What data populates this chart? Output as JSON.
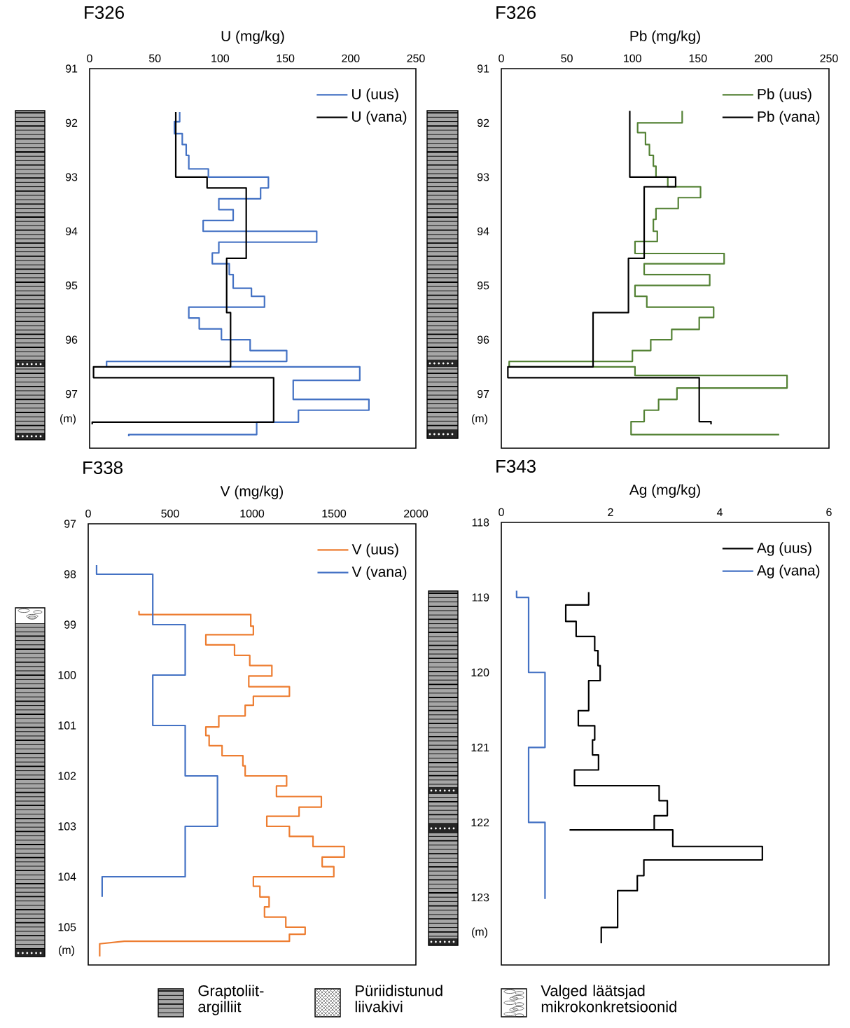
{
  "chart_data": [
    {
      "type": "line",
      "title": "F326",
      "xlabel": "U (mg/kg)",
      "ylabel": "(m)",
      "xlim": [
        0,
        250
      ],
      "xticks": [
        0,
        50,
        100,
        150,
        200,
        250
      ],
      "ylim": [
        98,
        91
      ],
      "yticks": [
        91,
        92,
        93,
        94,
        95,
        96,
        97
      ],
      "legend": "top right",
      "series": [
        {
          "name": "U (uus)",
          "color": "#4472c4",
          "x": [
            69,
            69,
            65,
            65,
            71,
            71,
            74,
            74,
            76,
            76,
            91,
            91,
            137,
            137,
            131,
            131,
            99,
            99,
            110,
            110,
            87,
            87,
            174,
            174,
            99,
            99,
            94,
            94,
            107,
            107,
            110,
            110,
            124,
            124,
            134,
            134,
            76,
            76,
            84,
            84,
            101,
            101,
            123,
            123,
            151,
            151,
            13,
            13,
            207,
            207,
            156,
            156,
            214,
            214,
            160,
            160,
            128,
            128,
            30,
            30
          ],
          "values": [
            91.8,
            91.98,
            91.98,
            92.2,
            92.2,
            92.4,
            92.4,
            92.6,
            92.6,
            92.85,
            92.85,
            93.0,
            93.0,
            93.2,
            93.2,
            93.4,
            93.4,
            93.6,
            93.6,
            93.8,
            93.8,
            94.0,
            94.0,
            94.2,
            94.2,
            94.4,
            94.4,
            94.6,
            94.6,
            94.8,
            94.8,
            95.05,
            95.05,
            95.2,
            95.2,
            95.4,
            95.4,
            95.6,
            95.6,
            95.8,
            95.8,
            96.0,
            96.0,
            96.2,
            96.2,
            96.4,
            96.4,
            96.5,
            96.5,
            96.75,
            96.75,
            97.1,
            97.1,
            97.3,
            97.3,
            97.52,
            97.52,
            97.75,
            97.75,
            97.78
          ]
        },
        {
          "name": "U (vana)",
          "color": "#000000",
          "x": [
            66,
            66,
            90,
            90,
            120,
            120,
            105,
            105,
            108,
            108,
            3,
            3,
            141,
            141,
            2,
            2
          ],
          "values": [
            91.8,
            93.0,
            93.0,
            93.2,
            93.2,
            94.5,
            94.5,
            95.5,
            95.5,
            96.5,
            96.5,
            96.7,
            96.7,
            97.52,
            97.52,
            97.56
          ]
        }
      ]
    },
    {
      "type": "line",
      "title": "F326",
      "xlabel": "Pb (mg/kg)",
      "ylabel": "(m)",
      "xlim": [
        0,
        250
      ],
      "xticks": [
        0,
        50,
        100,
        150,
        200,
        250
      ],
      "ylim": [
        98,
        91
      ],
      "yticks": [
        91,
        92,
        93,
        94,
        95,
        96,
        97
      ],
      "legend": "top right",
      "series": [
        {
          "name": "Pb (uus)",
          "color": "#548235",
          "x": [
            138,
            138,
            104,
            104,
            110,
            110,
            113,
            113,
            116,
            116,
            118,
            118,
            127,
            127,
            152,
            152,
            135,
            135,
            118,
            118,
            116,
            116,
            119,
            119,
            102,
            102,
            170,
            170,
            109,
            109,
            159,
            159,
            102,
            102,
            111,
            111,
            162,
            162,
            151,
            151,
            130,
            130,
            114,
            114,
            100,
            100,
            6,
            6,
            102,
            102,
            218,
            218,
            134,
            134,
            120,
            120,
            109,
            109,
            99,
            99,
            212
          ],
          "values": [
            91.78,
            92.0,
            92.0,
            92.18,
            92.18,
            92.4,
            92.4,
            92.6,
            92.6,
            92.8,
            92.8,
            93.0,
            93.0,
            93.18,
            93.18,
            93.38,
            93.38,
            93.58,
            93.58,
            93.78,
            93.78,
            94.0,
            94.0,
            94.19,
            94.19,
            94.41,
            94.41,
            94.6,
            94.6,
            94.8,
            94.8,
            95.0,
            95.0,
            95.2,
            95.2,
            95.4,
            95.4,
            95.59,
            95.59,
            95.81,
            95.81,
            96.0,
            96.0,
            96.2,
            96.2,
            96.4,
            96.4,
            96.5,
            96.5,
            96.66,
            96.66,
            96.89,
            96.89,
            97.1,
            97.1,
            97.3,
            97.3,
            97.51,
            97.51,
            97.75,
            97.75
          ]
        },
        {
          "name": "Pb (vana)",
          "color": "#000000",
          "x": [
            98,
            98,
            133,
            133,
            109,
            109,
            97,
            97,
            70,
            70,
            5,
            5,
            151,
            151,
            160,
            160
          ],
          "values": [
            91.78,
            93.0,
            93.0,
            93.18,
            93.18,
            94.5,
            94.5,
            95.5,
            95.5,
            96.5,
            96.5,
            96.7,
            96.7,
            97.51,
            97.51,
            97.56
          ]
        }
      ]
    },
    {
      "type": "line",
      "title": "F338",
      "xlabel": "V (mg/kg)",
      "ylabel": "(m)",
      "xlim": [
        0,
        2000
      ],
      "xticks": [
        0,
        500,
        1000,
        1500,
        2000
      ],
      "ylim": [
        105.75,
        97
      ],
      "yticks": [
        97,
        98,
        99,
        100,
        101,
        102,
        103,
        104,
        105
      ],
      "legend": "top right",
      "series": [
        {
          "name": "V (uus)",
          "color": "#ed7d31",
          "x": [
            310,
            310,
            992,
            992,
            1008,
            1008,
            718,
            718,
            893,
            893,
            986,
            986,
            1121,
            1121,
            980,
            980,
            1228,
            1228,
            1008,
            1008,
            958,
            958,
            797,
            797,
            718,
            718,
            738,
            738,
            817,
            817,
            944,
            944,
            958,
            958,
            1211,
            1211,
            1149,
            1149,
            1423,
            1423,
            1287,
            1287,
            1090,
            1090,
            1228,
            1228,
            1372,
            1372,
            1563,
            1563,
            1428,
            1428,
            1499,
            1499,
            1008,
            1008,
            1048,
            1048,
            1104,
            1104,
            1076,
            1076,
            1206,
            1206,
            1324,
            1324,
            1228,
            1228,
            220,
            70,
            70
          ],
          "values": [
            98.73,
            98.8,
            98.8,
            99.03,
            99.03,
            99.2,
            99.2,
            99.4,
            99.4,
            99.61,
            99.61,
            99.81,
            99.81,
            100.02,
            100.02,
            100.23,
            100.23,
            100.42,
            100.42,
            100.6,
            100.6,
            100.81,
            100.81,
            101.03,
            101.03,
            101.2,
            101.2,
            101.4,
            101.4,
            101.6,
            101.6,
            101.8,
            101.8,
            102.0,
            102.0,
            102.2,
            102.2,
            102.41,
            102.41,
            102.62,
            102.62,
            102.8,
            102.8,
            103.0,
            103.0,
            103.2,
            103.2,
            103.4,
            103.4,
            103.61,
            103.61,
            103.8,
            103.8,
            104.0,
            104.0,
            104.19,
            104.19,
            104.4,
            104.4,
            104.6,
            104.6,
            104.8,
            104.8,
            105.0,
            105.0,
            105.14,
            105.14,
            105.28,
            105.28,
            105.33,
            105.58
          ]
        },
        {
          "name": "V (vana)",
          "color": "#4472c4",
          "x": [
            51,
            51,
            394,
            394,
            592,
            592,
            394,
            394,
            592,
            592,
            789,
            789,
            592,
            592,
            85,
            85
          ],
          "values": [
            97.82,
            98.0,
            98.0,
            99.0,
            99.0,
            100.0,
            100.0,
            101.0,
            101.0,
            102.0,
            102.0,
            103.0,
            103.0,
            104.0,
            104.0,
            104.4
          ]
        }
      ]
    },
    {
      "type": "line",
      "title": "F343",
      "xlabel": "Ag (mg/kg)",
      "ylabel": "(m)",
      "xlim": [
        0,
        6
      ],
      "xticks": [
        0,
        2,
        4,
        6
      ],
      "ylim": [
        123.9,
        118
      ],
      "yticks": [
        118,
        119,
        120,
        121,
        122,
        123
      ],
      "legend": "top right",
      "series": [
        {
          "name": "Ag (uus)",
          "color": "#000000",
          "x": [
            1.6,
            1.6,
            1.18,
            1.18,
            1.37,
            1.37,
            1.71,
            1.71,
            1.77,
            1.77,
            1.81,
            1.81,
            1.6,
            1.6,
            1.41,
            1.41,
            1.71,
            1.71,
            1.67,
            1.67,
            1.78,
            1.78,
            1.34,
            1.34,
            2.89,
            2.89,
            3.04,
            3.04,
            2.8,
            2.8,
            1.26,
            3.14,
            3.14,
            4.78,
            4.78,
            2.61,
            2.61,
            2.49,
            2.49,
            2.13,
            2.13,
            1.83,
            1.83
          ],
          "values": [
            118.93,
            119.1,
            119.1,
            119.32,
            119.32,
            119.52,
            119.52,
            119.71,
            119.71,
            119.91,
            119.91,
            120.11,
            120.11,
            120.51,
            120.51,
            120.71,
            120.71,
            120.9,
            120.9,
            121.1,
            121.1,
            121.3,
            121.3,
            121.51,
            121.51,
            121.71,
            121.71,
            121.91,
            121.91,
            122.1,
            122.1,
            122.1,
            122.32,
            122.32,
            122.5,
            122.5,
            122.71,
            122.71,
            122.91,
            122.91,
            123.4,
            123.4,
            123.61
          ]
        },
        {
          "name": "Ag (vana)",
          "color": "#4472c4",
          "x": [
            0.28,
            0.28,
            0.5,
            0.5,
            0.8,
            0.8,
            0.5,
            0.5,
            0.8,
            0.8
          ],
          "values": [
            118.91,
            119.0,
            119.0,
            120.0,
            120.0,
            121.0,
            121.0,
            122.0,
            122.0,
            123.02
          ]
        }
      ]
    },
    {
      "type": "other",
      "annotations": [
        "Graptoliit-argilliit",
        "Püriidistunud liivakivi",
        "Valged läätsjad mikrokonkretsioonid"
      ]
    }
  ]
}
